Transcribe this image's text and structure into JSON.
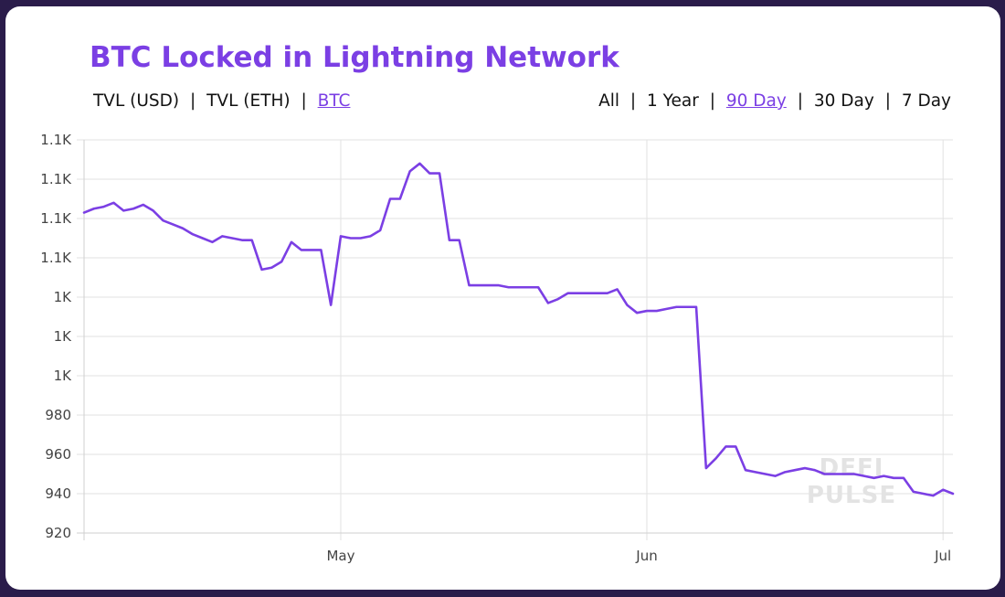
{
  "colors": {
    "accent": "#7b3fe4",
    "line": "#7b3fe4",
    "grid": "#e2e2e2",
    "background": "#2a1c4a"
  },
  "header": {
    "title": "BTC Locked in Lightning Network"
  },
  "metric_toggle": {
    "options": [
      "TVL (USD)",
      "TVL (ETH)",
      "BTC"
    ],
    "selected": "BTC",
    "separator": "|"
  },
  "range_toggle": {
    "options": [
      "All",
      "1 Year",
      "90 Day",
      "30 Day",
      "7 Day"
    ],
    "selected": "90 Day",
    "separator": "|"
  },
  "watermark": {
    "line1": "DEFI",
    "line2": "PULSE"
  },
  "chart_data": {
    "type": "line",
    "title": "BTC Locked in Lightning Network",
    "xlabel": "",
    "ylabel": "",
    "grid": true,
    "legend": "none",
    "ylim": [
      920,
      1120
    ],
    "yticks": [
      {
        "value": 920,
        "label": "920"
      },
      {
        "value": 940,
        "label": "940"
      },
      {
        "value": 960,
        "label": "960"
      },
      {
        "value": 980,
        "label": "980"
      },
      {
        "value": 1000,
        "label": "1K"
      },
      {
        "value": 1020,
        "label": "1K"
      },
      {
        "value": 1040,
        "label": "1K"
      },
      {
        "value": 1060,
        "label": "1.1K"
      },
      {
        "value": 1080,
        "label": "1.1K"
      },
      {
        "value": 1100,
        "label": "1.1K"
      },
      {
        "value": 1120,
        "label": "1.1K"
      }
    ],
    "xlim": [
      "2021-04-05",
      "2021-07-02"
    ],
    "xticks": [
      {
        "value": "2021-05-01",
        "label": "May"
      },
      {
        "value": "2021-06-01",
        "label": "Jun"
      },
      {
        "value": "2021-07-01",
        "label": "Jul"
      }
    ],
    "series": [
      {
        "values": [
          [
            "2021-04-05",
            1083
          ],
          [
            "2021-04-06",
            1085
          ],
          [
            "2021-04-07",
            1086
          ],
          [
            "2021-04-08",
            1088
          ],
          [
            "2021-04-09",
            1084
          ],
          [
            "2021-04-10",
            1085
          ],
          [
            "2021-04-11",
            1087
          ],
          [
            "2021-04-12",
            1084
          ],
          [
            "2021-04-13",
            1079
          ],
          [
            "2021-04-14",
            1077
          ],
          [
            "2021-04-15",
            1075
          ],
          [
            "2021-04-16",
            1072
          ],
          [
            "2021-04-17",
            1070
          ],
          [
            "2021-04-18",
            1068
          ],
          [
            "2021-04-19",
            1071
          ],
          [
            "2021-04-20",
            1070
          ],
          [
            "2021-04-21",
            1069
          ],
          [
            "2021-04-22",
            1069
          ],
          [
            "2021-04-23",
            1054
          ],
          [
            "2021-04-24",
            1055
          ],
          [
            "2021-04-25",
            1058
          ],
          [
            "2021-04-26",
            1068
          ],
          [
            "2021-04-27",
            1064
          ],
          [
            "2021-04-28",
            1064
          ],
          [
            "2021-04-29",
            1064
          ],
          [
            "2021-04-30",
            1036
          ],
          [
            "2021-05-01",
            1071
          ],
          [
            "2021-05-02",
            1070
          ],
          [
            "2021-05-03",
            1070
          ],
          [
            "2021-05-04",
            1071
          ],
          [
            "2021-05-05",
            1074
          ],
          [
            "2021-05-06",
            1090
          ],
          [
            "2021-05-07",
            1090
          ],
          [
            "2021-05-08",
            1104
          ],
          [
            "2021-05-09",
            1108
          ],
          [
            "2021-05-10",
            1103
          ],
          [
            "2021-05-11",
            1103
          ],
          [
            "2021-05-12",
            1069
          ],
          [
            "2021-05-13",
            1069
          ],
          [
            "2021-05-14",
            1046
          ],
          [
            "2021-05-15",
            1046
          ],
          [
            "2021-05-16",
            1046
          ],
          [
            "2021-05-17",
            1046
          ],
          [
            "2021-05-18",
            1045
          ],
          [
            "2021-05-19",
            1045
          ],
          [
            "2021-05-20",
            1045
          ],
          [
            "2021-05-21",
            1045
          ],
          [
            "2021-05-22",
            1037
          ],
          [
            "2021-05-23",
            1039
          ],
          [
            "2021-05-24",
            1042
          ],
          [
            "2021-05-25",
            1042
          ],
          [
            "2021-05-26",
            1042
          ],
          [
            "2021-05-27",
            1042
          ],
          [
            "2021-05-28",
            1042
          ],
          [
            "2021-05-29",
            1044
          ],
          [
            "2021-05-30",
            1036
          ],
          [
            "2021-05-31",
            1032
          ],
          [
            "2021-06-01",
            1033
          ],
          [
            "2021-06-02",
            1033
          ],
          [
            "2021-06-03",
            1034
          ],
          [
            "2021-06-04",
            1035
          ],
          [
            "2021-06-05",
            1035
          ],
          [
            "2021-06-06",
            1035
          ],
          [
            "2021-06-07",
            953
          ],
          [
            "2021-06-08",
            958
          ],
          [
            "2021-06-09",
            964
          ],
          [
            "2021-06-10",
            964
          ],
          [
            "2021-06-11",
            952
          ],
          [
            "2021-06-12",
            951
          ],
          [
            "2021-06-13",
            950
          ],
          [
            "2021-06-14",
            949
          ],
          [
            "2021-06-15",
            951
          ],
          [
            "2021-06-16",
            952
          ],
          [
            "2021-06-17",
            953
          ],
          [
            "2021-06-18",
            952
          ],
          [
            "2021-06-19",
            950
          ],
          [
            "2021-06-20",
            950
          ],
          [
            "2021-06-21",
            950
          ],
          [
            "2021-06-22",
            950
          ],
          [
            "2021-06-23",
            949
          ],
          [
            "2021-06-24",
            948
          ],
          [
            "2021-06-25",
            949
          ],
          [
            "2021-06-26",
            948
          ],
          [
            "2021-06-27",
            948
          ],
          [
            "2021-06-28",
            941
          ],
          [
            "2021-06-29",
            940
          ],
          [
            "2021-06-30",
            939
          ],
          [
            "2021-07-01",
            942
          ],
          [
            "2021-07-02",
            940
          ]
        ]
      }
    ]
  }
}
